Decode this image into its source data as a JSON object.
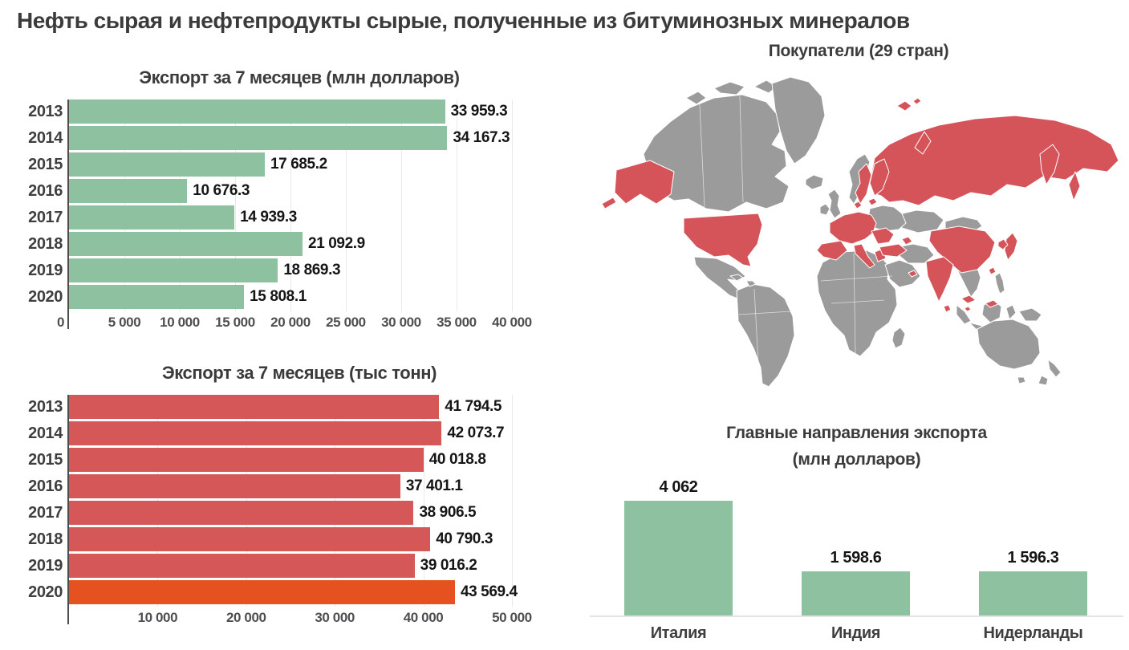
{
  "page": {
    "title": "Нефть сырая и нефтепродукты сырые, полученные из битуминозных минералов"
  },
  "colors": {
    "bar_green": "#8dc1a0",
    "bar_red": "#d65758",
    "bar_orange": "#e5511f",
    "map_base": "#9b9b9b",
    "map_highlight": "#d5545a"
  },
  "map": {
    "title": "Покупатели (29 стран)",
    "highlighted_regions": [
      "USA",
      "Alaska",
      "Russia",
      "Sweden",
      "Finland",
      "France",
      "Spain",
      "Portugal",
      "Germany",
      "Netherlands",
      "Italy",
      "Greece",
      "Romania",
      "Bulgaria",
      "Turkey",
      "Azerbaijan",
      "UAE",
      "India",
      "China",
      "Japan",
      "South Korea",
      "Taiwan",
      "Malaysia",
      "Singapore"
    ],
    "base_regions": [
      "Canada",
      "Greenland",
      "Iceland",
      "United Kingdom",
      "Ireland",
      "Norway",
      "Poland",
      "Belarus",
      "Ukraine",
      "Mexico",
      "South America",
      "Africa",
      "Middle East",
      "Kazakhstan",
      "Mongolia",
      "Southeast Asia",
      "Indonesia",
      "Philippines",
      "Australia",
      "New Zealand"
    ]
  },
  "chart_data": [
    {
      "id": "usd",
      "type": "bar",
      "orientation": "horizontal",
      "title": "Экспорт за 7 месяцев (млн долларов)",
      "categories": [
        "2013",
        "2014",
        "2015",
        "2016",
        "2017",
        "2018",
        "2019",
        "2020"
      ],
      "values": [
        33959.3,
        34167.3,
        17685.2,
        10676.3,
        14939.3,
        21092.9,
        18869.3,
        15808.1
      ],
      "value_labels": [
        "33 959.3",
        "34 167.3",
        "17 685.2",
        "10 676.3",
        "14 939.3",
        "21 092.9",
        "18 869.3",
        "15 808.1"
      ],
      "tick_values": [
        0,
        5000,
        10000,
        15000,
        20000,
        25000,
        30000,
        35000,
        40000
      ],
      "tick_labels": [
        "0",
        "5 000",
        "10 000",
        "15 000",
        "20 000",
        "25 000",
        "30 000",
        "35 000",
        "40 000"
      ],
      "xlim": [
        0,
        40000
      ],
      "grid": true,
      "bar_color_key": "bar_green"
    },
    {
      "id": "tons",
      "type": "bar",
      "orientation": "horizontal",
      "title": "Экспорт за 7 месяцев (тыс тонн)",
      "categories": [
        "2013",
        "2014",
        "2015",
        "2016",
        "2017",
        "2018",
        "2019",
        "2020"
      ],
      "values": [
        41794.5,
        42073.7,
        40018.8,
        37401.1,
        38906.5,
        40790.3,
        39016.2,
        43569.4
      ],
      "value_labels": [
        "41 794.5",
        "42 073.7",
        "40 018.8",
        "37 401.1",
        "38 906.5",
        "40 790.3",
        "39 016.2",
        "43 569.4"
      ],
      "tick_values": [
        10000,
        20000,
        30000,
        40000,
        50000
      ],
      "tick_labels": [
        "10 000",
        "20 000",
        "30 000",
        "40 000",
        "50 000"
      ],
      "xlim": [
        0,
        50000
      ],
      "grid": true,
      "bar_color_key": "bar_red",
      "highlight_index": 7,
      "highlight_color_key": "bar_orange"
    },
    {
      "id": "destinations",
      "type": "bar",
      "orientation": "vertical",
      "title": "Главные направления экспорта",
      "subtitle": "(млн долларов)",
      "categories": [
        "Италия",
        "Индия",
        "Нидерланды"
      ],
      "values": [
        4062,
        1598.6,
        1596.3
      ],
      "value_labels": [
        "4 062",
        "1 598.6",
        "1 596.3"
      ],
      "bar_color_key": "bar_green"
    }
  ]
}
